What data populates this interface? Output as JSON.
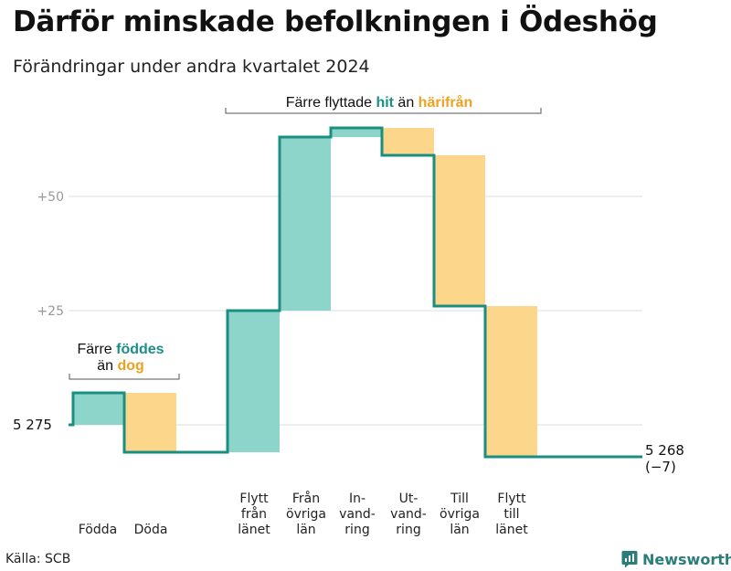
{
  "title": "Därför minskade befolkningen i Ödeshög",
  "subtitle": "Förändringar under andra kvartalet 2024",
  "source": "Källa: SCB",
  "brand": "Newsworthy",
  "colors": {
    "increase": "#8dd4ca",
    "decrease": "#fbd68b",
    "line": "#1a8f80",
    "grid": "#dddddd"
  },
  "annotations": {
    "migration": {
      "prefix": "Färre flyttade",
      "hit": "hit",
      "middle": "än",
      "harifran": "härifrån"
    },
    "births": {
      "line1_prefix": "Färre",
      "line1_highlight": "föddes",
      "line2_prefix": "än",
      "line2_highlight": "dog"
    }
  },
  "chart_data": {
    "type": "waterfall",
    "start_label": "5 275",
    "end_label": "5 268",
    "end_change_label": "(−7)",
    "start_value": 0,
    "y_ticks": [
      {
        "value": 50,
        "label": "+50"
      },
      {
        "value": 25,
        "label": "+25"
      }
    ],
    "steps": [
      {
        "label_lines": [
          "Födda"
        ],
        "change": 7,
        "kind": "increase"
      },
      {
        "label_lines": [
          "Döda"
        ],
        "change": -13,
        "kind": "decrease"
      },
      {
        "label_lines": [
          "Flytt",
          "från",
          "länet"
        ],
        "change": 31,
        "kind": "increase"
      },
      {
        "label_lines": [
          "Från",
          "övriga",
          "län"
        ],
        "change": 38,
        "kind": "increase"
      },
      {
        "label_lines": [
          "In-",
          "vand-",
          "ring"
        ],
        "change": 2,
        "kind": "increase"
      },
      {
        "label_lines": [
          "Ut-",
          "vand-",
          "ring"
        ],
        "change": -6,
        "kind": "decrease"
      },
      {
        "label_lines": [
          "Till",
          "övriga",
          "län"
        ],
        "change": -33,
        "kind": "decrease"
      },
      {
        "label_lines": [
          "Flytt",
          "till",
          "länet"
        ],
        "change": -33,
        "kind": "decrease"
      }
    ],
    "end_value": -7
  }
}
